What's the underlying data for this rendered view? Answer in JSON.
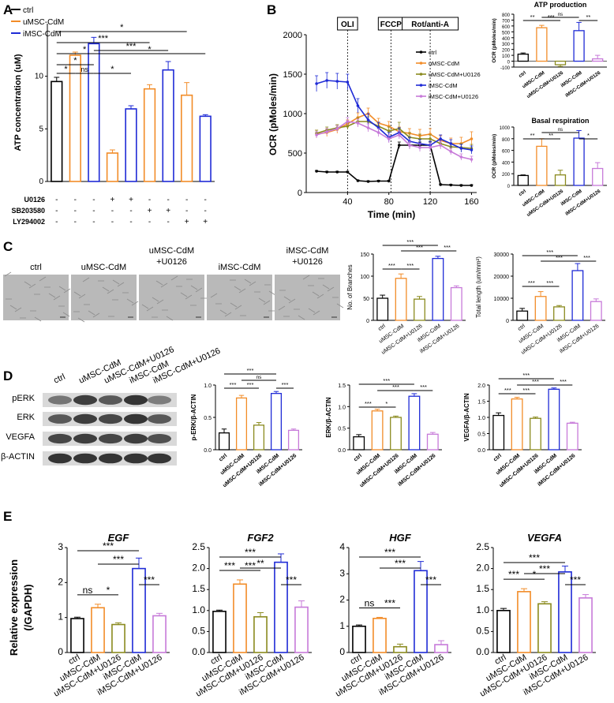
{
  "colors": {
    "ctrl": "#000000",
    "umsc": "#f28c28",
    "umscu": "#8a8a1e",
    "imsc": "#1f2bd6",
    "imscu": "#c77ad9",
    "grid": "#333333",
    "micro": "#b9b9b9"
  },
  "groups": [
    "ctrl",
    "uMSC-CdM",
    "uMSC-CdM+U0126",
    "iMSC-CdM",
    "iMSC-CdM+U0126"
  ],
  "panels": {
    "A": "A",
    "B": "B",
    "C": "C",
    "D": "D",
    "E": "E"
  },
  "panelA": {
    "legend": [
      "ctrl",
      "uMSC-CdM",
      "iMSC-CdM"
    ],
    "ylabel": "ATP concentration (uM)",
    "treatments": [
      {
        "name": "U0126",
        "signs": [
          "-",
          "-",
          "-",
          "+",
          "+",
          "-",
          "-",
          "-",
          "-"
        ]
      },
      {
        "name": "SB203580",
        "signs": [
          "-",
          "-",
          "-",
          "-",
          "-",
          "+",
          "+",
          "-",
          "-"
        ]
      },
      {
        "name": "LY294002",
        "signs": [
          "-",
          "-",
          "-",
          "-",
          "-",
          "-",
          "-",
          "+",
          "+"
        ]
      }
    ],
    "sig": [
      "*",
      "***",
      "*",
      "*",
      "*",
      "ns",
      "***",
      "*",
      "***"
    ]
  },
  "panelB": {
    "ylabel": "OCR (pMoles/min)",
    "xlabel": "Time (min)",
    "injections": [
      "OLI",
      "FCCP",
      "Rot/anti-A"
    ],
    "legend": [
      "ctrl",
      "uMSC-CdM",
      "uMSC-CdM+U0126",
      "iMSC-CdM",
      "iMSC-CdM+U0126"
    ],
    "sub": [
      {
        "title": "ATP production",
        "ylabel": "OCR (pMoles/min)",
        "sig": [
          "**",
          "***",
          "ns",
          "**"
        ]
      },
      {
        "title": "Basal respiration",
        "ylabel": "OCR (pMoles/min)",
        "sig": [
          "**",
          "**",
          "ns",
          "*"
        ]
      }
    ]
  },
  "panelC": {
    "images": [
      "ctrl",
      "uMSC-CdM",
      "uMSC-CdM\n+U0126",
      "iMSC-CdM",
      "iMSC-CdM\n+U0126"
    ],
    "sig": [
      "***",
      "***",
      "***",
      "***",
      "***"
    ]
  },
  "panelD": {
    "lanes": [
      "ctrl",
      "uMSC-CdM",
      "uMSC-CdM+U0126",
      "iMSC-CdM",
      "iMSC-CdM+U0126"
    ],
    "blots": [
      "pERK",
      "ERK",
      "VEGFA",
      "β-ACTIN"
    ],
    "sig": [
      "***",
      "***",
      "***",
      "ns",
      "***"
    ]
  },
  "panelE": {
    "ylabel": "Relative expression\n(/GAPDH)",
    "sig": {
      "EGF": [
        "ns",
        "*",
        "***",
        "***",
        "***"
      ],
      "FGF2": [
        "***",
        "***",
        "***",
        "**",
        "***"
      ],
      "HGF": [
        "ns",
        "***",
        "***",
        "***",
        "***"
      ],
      "VEGFA": [
        "***",
        "*",
        "***",
        "***",
        "***"
      ]
    }
  },
  "chart_data": [
    {
      "id": "A",
      "type": "bar",
      "categories": [
        "ctrl",
        "uMSC-CdM",
        "iMSC-CdM",
        "uMSC+U0126",
        "iMSC+U0126",
        "uMSC+SB203580",
        "iMSC+SB203580",
        "uMSC+LY294002",
        "iMSC+LY294002"
      ],
      "values": [
        9.5,
        12.0,
        13.1,
        2.7,
        6.9,
        8.8,
        10.6,
        8.2,
        6.2
      ],
      "errors": [
        0.4,
        0.3,
        0.6,
        0.3,
        0.3,
        0.4,
        0.8,
        1.2,
        0.15
      ],
      "colors": [
        "#000000",
        "#f28c28",
        "#1f2bd6",
        "#f28c28",
        "#1f2bd6",
        "#f28c28",
        "#1f2bd6",
        "#f28c28",
        "#1f2bd6"
      ],
      "ylabel": "ATP concentration (uM)",
      "ylim": [
        0,
        15
      ],
      "yticks": [
        0,
        5,
        10
      ]
    },
    {
      "id": "B",
      "type": "line",
      "x": [
        10,
        20,
        30,
        40,
        50,
        60,
        70,
        80,
        90,
        100,
        110,
        120,
        130,
        140,
        150,
        160
      ],
      "series": [
        {
          "name": "ctrl",
          "values": [
            270,
            260,
            260,
            260,
            150,
            140,
            145,
            145,
            600,
            600,
            600,
            600,
            100,
            95,
            90,
            90
          ],
          "errors": [
            10,
            10,
            10,
            10,
            10,
            10,
            10,
            10,
            40,
            40,
            40,
            40,
            10,
            10,
            10,
            10
          ]
        },
        {
          "name": "uMSC-CdM",
          "values": [
            740,
            760,
            800,
            870,
            950,
            1000,
            880,
            840,
            770,
            750,
            720,
            740,
            660,
            620,
            620,
            680
          ],
          "errors": [
            50,
            50,
            50,
            50,
            60,
            70,
            60,
            60,
            60,
            60,
            80,
            70,
            60,
            70,
            80,
            90
          ]
        },
        {
          "name": "uMSC-CdM+U0126",
          "values": [
            750,
            790,
            820,
            840,
            900,
            900,
            840,
            780,
            810,
            700,
            680,
            680,
            620,
            580,
            570,
            560
          ],
          "errors": [
            40,
            40,
            40,
            40,
            50,
            60,
            50,
            50,
            80,
            60,
            60,
            50,
            50,
            50,
            50,
            50
          ]
        },
        {
          "name": "iMSC-CdM",
          "values": [
            1380,
            1420,
            1410,
            1400,
            1100,
            920,
            820,
            700,
            760,
            650,
            620,
            600,
            680,
            620,
            560,
            540
          ],
          "errors": [
            100,
            100,
            100,
            100,
            90,
            80,
            70,
            60,
            60,
            50,
            50,
            50,
            50,
            50,
            50,
            50
          ]
        },
        {
          "name": "iMSC-CdM+U0126",
          "values": [
            730,
            770,
            810,
            900,
            880,
            820,
            760,
            680,
            730,
            600,
            570,
            570,
            600,
            520,
            450,
            420
          ],
          "errors": [
            40,
            40,
            40,
            50,
            50,
            50,
            50,
            50,
            50,
            50,
            50,
            50,
            50,
            40,
            40,
            40
          ]
        }
      ],
      "ylabel": "OCR (pMoles/min)",
      "xlabel": "Time (min)",
      "ylim": [
        0,
        2000
      ],
      "yticks": [
        0,
        500,
        1000,
        1500,
        2000
      ],
      "xticks": [
        40,
        80,
        120,
        160
      ],
      "vlines": [
        40,
        82,
        120
      ]
    },
    {
      "id": "B-ATP",
      "type": "bar",
      "categories": [
        "ctrl",
        "uMSC-CdM",
        "uMSC-CdM+U0126",
        "iMSC-CdM",
        "iMSC-CdM+U0126"
      ],
      "values": [
        120,
        570,
        -60,
        520,
        40
      ],
      "errors": [
        20,
        40,
        30,
        140,
        60
      ],
      "title": "ATP production",
      "ylabel": "OCR (pMoles/min)",
      "ylim": [
        -100,
        800
      ],
      "yticks": [
        -100,
        0,
        100,
        200,
        300,
        400,
        500,
        600,
        700,
        800
      ]
    },
    {
      "id": "B-Basal",
      "type": "bar",
      "categories": [
        "ctrl",
        "uMSC-CdM",
        "uMSC-CdM+U0126",
        "iMSC-CdM",
        "iMSC-CdM+U0126"
      ],
      "values": [
        170,
        670,
        180,
        810,
        290
      ],
      "errors": [
        10,
        130,
        80,
        130,
        100
      ],
      "title": "Basal respiration",
      "ylabel": "OCR (pMoles/min)",
      "ylim": [
        0,
        1000
      ],
      "yticks": [
        0,
        200,
        400,
        600,
        800,
        1000
      ]
    },
    {
      "id": "C-branches",
      "type": "bar",
      "categories": [
        "ctrl",
        "uMSC-CdM",
        "uMSC-CdM+U0126",
        "iMSC-CdM",
        "iMSC-CdM+U0126"
      ],
      "values": [
        50,
        95,
        48,
        140,
        74
      ],
      "errors": [
        7,
        10,
        6,
        5,
        4
      ],
      "ylabel": "No. of Branches",
      "ylim": [
        0,
        150
      ],
      "yticks": [
        0,
        50,
        100,
        150
      ]
    },
    {
      "id": "C-length",
      "type": "bar",
      "categories": [
        "ctrl",
        "uMSC-CdM",
        "uMSC-CdM+U0126",
        "iMSC-CdM",
        "iMSC-CdM+U0126"
      ],
      "values": [
        4200,
        10800,
        6100,
        22500,
        8500
      ],
      "errors": [
        1200,
        2200,
        600,
        3200,
        1200
      ],
      "ylabel": "Total length (um/mm²)",
      "ylim": [
        0,
        30000
      ],
      "yticks": [
        0,
        10000,
        20000,
        30000
      ]
    },
    {
      "id": "D-pERK",
      "type": "bar",
      "categories": [
        "ctrl",
        "uMSC-CdM",
        "uMSC-CdM+U0126",
        "iMSC-CdM",
        "iMSC-CdM+U0126"
      ],
      "values": [
        0.26,
        0.8,
        0.38,
        0.87,
        0.3
      ],
      "errors": [
        0.06,
        0.04,
        0.04,
        0.03,
        0.02
      ],
      "ylabel": "p-ERK/β-ACTIN",
      "ylim": [
        0,
        1.0
      ],
      "yticks": [
        0,
        0.5,
        1.0
      ],
      "ytickLabels": [
        "0.0",
        "0.5",
        "1.0"
      ]
    },
    {
      "id": "D-ERK",
      "type": "bar",
      "categories": [
        "ctrl",
        "uMSC-CdM",
        "uMSC-CdM+U0126",
        "iMSC-CdM",
        "iMSC-CdM+U0126"
      ],
      "values": [
        0.3,
        0.9,
        0.75,
        1.24,
        0.36
      ],
      "errors": [
        0.05,
        0.04,
        0.03,
        0.06,
        0.04
      ],
      "ylabel": "ERK/β-ACTIN",
      "ylim": [
        0,
        1.5
      ],
      "yticks": [
        0,
        0.5,
        1.0,
        1.5
      ],
      "ytickLabels": [
        "0.0",
        "0.5",
        "1.0",
        "1.5"
      ]
    },
    {
      "id": "D-VEGFA",
      "type": "bar",
      "categories": [
        "ctrl",
        "uMSC-CdM",
        "uMSC-CdM+U0126",
        "iMSC-CdM",
        "iMSC-CdM+U0126"
      ],
      "values": [
        1.06,
        1.57,
        0.97,
        1.87,
        0.82
      ],
      "errors": [
        0.08,
        0.05,
        0.04,
        0.04,
        0.03
      ],
      "ylabel": "VEGFA/β-ACTIN",
      "ylim": [
        0,
        2.0
      ],
      "yticks": [
        0,
        0.5,
        1.0,
        1.5,
        2.0
      ],
      "ytickLabels": [
        "0.0",
        "0.5",
        "1.0",
        "1.5",
        "2.0"
      ]
    },
    {
      "id": "E-EGF",
      "type": "bar",
      "title": "EGF",
      "categories": [
        "ctrl",
        "uMSC-CdM",
        "uMSC-CdM+U0126",
        "iMSC-CdM",
        "iMSC-CdM+U0126"
      ],
      "values": [
        0.97,
        1.28,
        0.8,
        2.4,
        1.05
      ],
      "errors": [
        0.04,
        0.1,
        0.05,
        0.3,
        0.07
      ],
      "ylim": [
        0,
        3
      ],
      "yticks": [
        0,
        1,
        2,
        3
      ]
    },
    {
      "id": "E-FGF2",
      "type": "bar",
      "title": "FGF2",
      "categories": [
        "ctrl",
        "uMSC-CdM",
        "uMSC-CdM+U0126",
        "iMSC-CdM",
        "iMSC-CdM+U0126"
      ],
      "values": [
        0.98,
        1.63,
        0.85,
        2.15,
        1.08
      ],
      "errors": [
        0.03,
        0.1,
        0.1,
        0.2,
        0.15
      ],
      "ylim": [
        0,
        2.5
      ],
      "yticks": [
        0,
        0.5,
        1.0,
        1.5,
        2.0,
        2.5
      ],
      "ytickLabels": [
        "0.0",
        "0.5",
        "1.0",
        "1.5",
        "2.0",
        "2.5"
      ]
    },
    {
      "id": "E-HGF",
      "type": "bar",
      "title": "HGF",
      "categories": [
        "ctrl",
        "uMSC-CdM",
        "uMSC-CdM+U0126",
        "iMSC-CdM",
        "iMSC-CdM+U0126"
      ],
      "values": [
        1.0,
        1.3,
        0.22,
        3.12,
        0.3
      ],
      "errors": [
        0.05,
        0.04,
        0.1,
        0.35,
        0.15
      ],
      "ylim": [
        0,
        4
      ],
      "yticks": [
        0,
        1,
        2,
        3,
        4
      ]
    },
    {
      "id": "E-VEGFA",
      "type": "bar",
      "title": "VEGFA",
      "categories": [
        "ctrl",
        "uMSC-CdM",
        "uMSC-CdM+U0126",
        "iMSC-CdM",
        "iMSC-CdM+U0126"
      ],
      "values": [
        1.0,
        1.45,
        1.16,
        1.92,
        1.3
      ],
      "errors": [
        0.05,
        0.07,
        0.05,
        0.14,
        0.08
      ],
      "ylim": [
        0,
        2.5
      ],
      "yticks": [
        0,
        0.5,
        1.0,
        1.5,
        2.0,
        2.5
      ],
      "ytickLabels": [
        "0.0",
        "0.5",
        "1.0",
        "1.5",
        "2.0",
        "2.5"
      ]
    }
  ]
}
